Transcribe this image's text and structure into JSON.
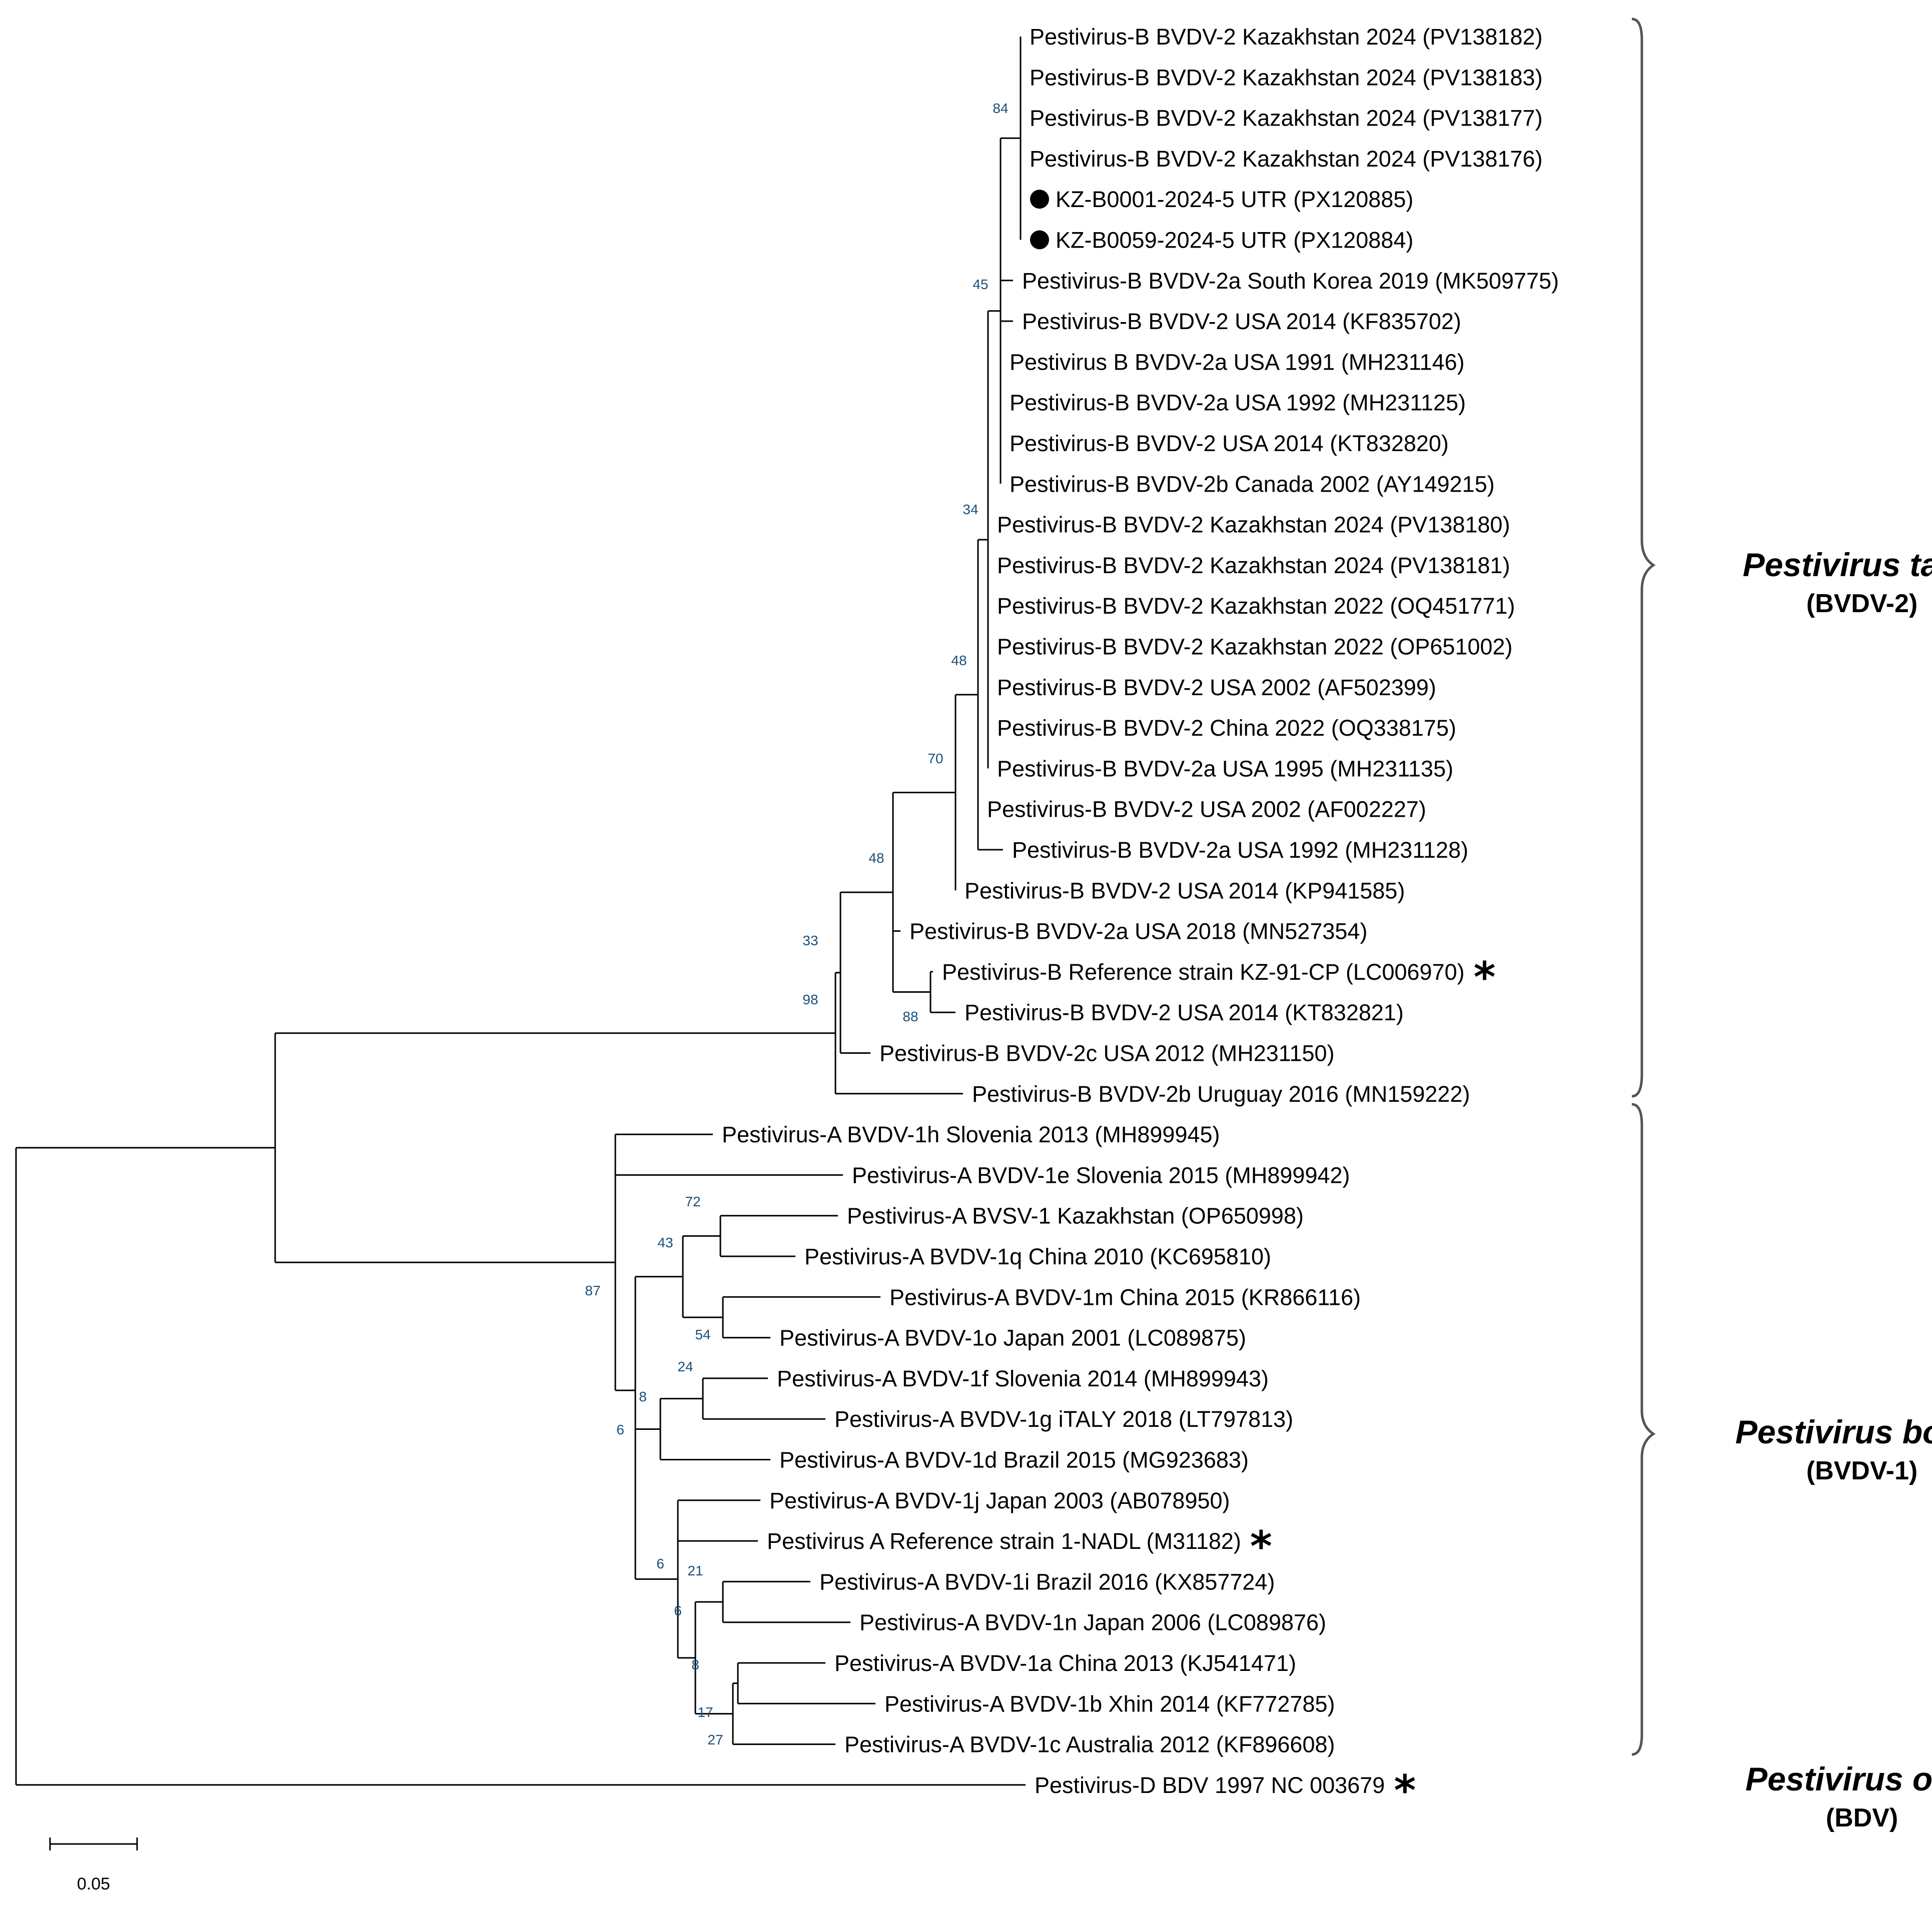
{
  "leaves": [
    {
      "label": "Pestivirus-B BVDV-2 Kazakhstan 2024 (PV138182)"
    },
    {
      "label": "Pestivirus-B BVDV-2 Kazakhstan 2024 (PV138183)"
    },
    {
      "label": "Pestivirus-B BVDV-2 Kazakhstan 2024 (PV138177)"
    },
    {
      "label": "Pestivirus-B BVDV-2 Kazakhstan 2024 (PV138176)"
    },
    {
      "label": "KZ-B0001-2024-5 UTR (PX120885)",
      "marker": "circle"
    },
    {
      "label": "KZ-B0059-2024-5 UTR (PX120884)",
      "marker": "circle"
    },
    {
      "label": "Pestivirus-B BVDV-2a South Korea 2019 (MK509775)"
    },
    {
      "label": "Pestivirus-B BVDV-2 USA 2014 (KF835702)"
    },
    {
      "label": "Pestivirus B BVDV-2a USA 1991 (MH231146)"
    },
    {
      "label": "Pestivirus-B BVDV-2a USA 1992 (MH231125)"
    },
    {
      "label": "Pestivirus-B BVDV-2 USA 2014 (KT832820)"
    },
    {
      "label": "Pestivirus-B BVDV-2b Canada 2002 (AY149215)"
    },
    {
      "label": "Pestivirus-B BVDV-2 Kazakhstan 2024 (PV138180)"
    },
    {
      "label": "Pestivirus-B BVDV-2 Kazakhstan 2024 (PV138181)"
    },
    {
      "label": "Pestivirus-B BVDV-2 Kazakhstan 2022 (OQ451771)"
    },
    {
      "label": "Pestivirus-B BVDV-2 Kazakhstan 2022 (OP651002)"
    },
    {
      "label": "Pestivirus-B BVDV-2 USA 2002 (AF502399)"
    },
    {
      "label": "Pestivirus-B BVDV-2 China 2022 (OQ338175)"
    },
    {
      "label": "Pestivirus-B BVDV-2a USA 1995 (MH231135)"
    },
    {
      "label": "Pestivirus-B BVDV-2 USA 2002 (AF002227)"
    },
    {
      "label": "Pestivirus-B BVDV-2a USA 1992 (MH231128)"
    },
    {
      "label": "Pestivirus-B BVDV-2 USA 2014 (KP941585)"
    },
    {
      "label": "Pestivirus-B BVDV-2a USA 2018 (MN527354)"
    },
    {
      "label": "Pestivirus-B Reference strain KZ-91-CP (LC006970)",
      "marker": "asterisk"
    },
    {
      "label": "Pestivirus-B BVDV-2 USA 2014 (KT832821)"
    },
    {
      "label": "Pestivirus-B BVDV-2c USA 2012 (MH231150)"
    },
    {
      "label": "Pestivirus-B BVDV-2b Uruguay 2016 (MN159222)"
    },
    {
      "label": "Pestivirus-A BVDV-1h Slovenia 2013 (MH899945)"
    },
    {
      "label": "Pestivirus-A BVDV-1e Slovenia 2015 (MH899942)"
    },
    {
      "label": "Pestivirus-A BVSV-1 Kazakhstan (OP650998)"
    },
    {
      "label": "Pestivirus-A BVDV-1q China 2010 (KC695810)"
    },
    {
      "label": "Pestivirus-A BVDV-1m China 2015 (KR866116)"
    },
    {
      "label": "Pestivirus-A BVDV-1o Japan 2001 (LC089875)"
    },
    {
      "label": "Pestivirus-A BVDV-1f Slovenia 2014 (MH899943)"
    },
    {
      "label": "Pestivirus-A BVDV-1g iTALY 2018 (LT797813)"
    },
    {
      "label": "Pestivirus-A BVDV-1d Brazil 2015 (MG923683)"
    },
    {
      "label": "Pestivirus-A BVDV-1j Japan 2003 (AB078950)"
    },
    {
      "label": "Pestivirus A Reference strain 1-NADL (M31182)",
      "marker": "asterisk"
    },
    {
      "label": "Pestivirus-A BVDV-1i Brazil 2016 (KX857724)"
    },
    {
      "label": "Pestivirus-A BVDV-1n Japan 2006 (LC089876)"
    },
    {
      "label": "Pestivirus-A BVDV-1a China 2013 (KJ541471)"
    },
    {
      "label": "Pestivirus-A BVDV-1b Xhin 2014 (KF772785)"
    },
    {
      "label": "Pestivirus-A BVDV-1c Australia 2012 (KF896608)"
    },
    {
      "label": "Pestivirus-D BDV 1997 NC 003679",
      "marker": "asterisk"
    }
  ],
  "bootstrap": [
    "84",
    "45",
    "34",
    "48",
    "70",
    "48",
    "33",
    "98",
    "88",
    "72",
    "43",
    "54",
    "87",
    "24",
    "8",
    "6",
    "6",
    "21",
    "6",
    "8",
    "17",
    "27"
  ],
  "groups": [
    {
      "name": "Pestivirus tauri",
      "subtitle": "(BVDV-2)"
    },
    {
      "name": "Pestivirus bovis",
      "subtitle": "(BVDV-1)"
    },
    {
      "name": "Pestivirus ovis",
      "subtitle": "(BDV)"
    }
  ],
  "scale_bar": {
    "label": "0.05"
  },
  "colors": {
    "branch": "#000000",
    "bootstrap": "#1a4f7a",
    "brace": "#555555"
  }
}
